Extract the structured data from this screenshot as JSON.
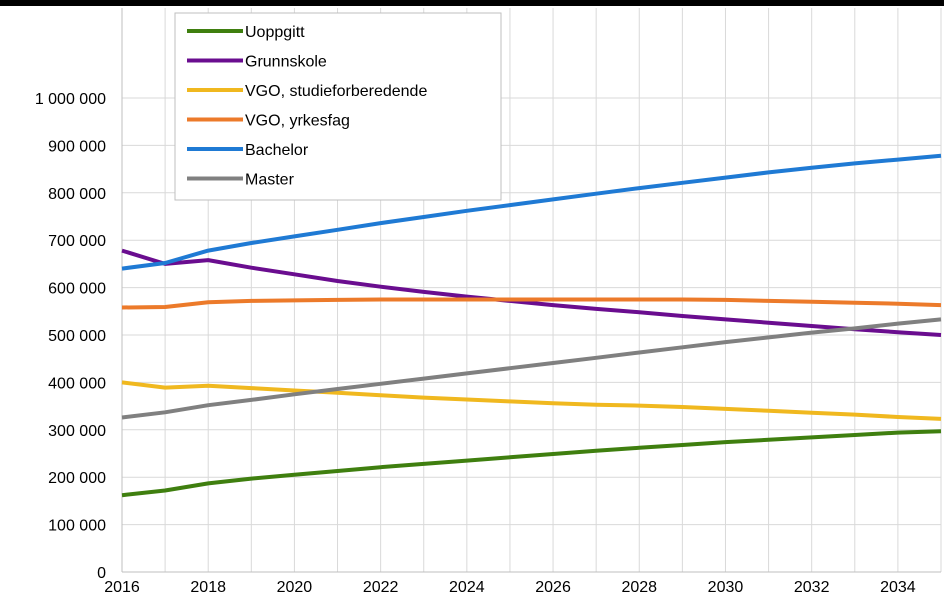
{
  "chart_data": {
    "type": "line",
    "title": "",
    "xlabel": "",
    "ylabel": "",
    "x": [
      2016,
      2017,
      2018,
      2019,
      2020,
      2021,
      2022,
      2023,
      2024,
      2025,
      2026,
      2027,
      2028,
      2029,
      2030,
      2031,
      2032,
      2033,
      2034,
      2035
    ],
    "xlim": [
      2016,
      2035
    ],
    "ylim": [
      0,
      1000000
    ],
    "x_ticks": [
      "2016",
      "2018",
      "2020",
      "2022",
      "2024",
      "2026",
      "2028",
      "2030",
      "2032",
      "2034"
    ],
    "x_tick_values": [
      2016,
      2018,
      2020,
      2022,
      2024,
      2026,
      2028,
      2030,
      2032,
      2034
    ],
    "y_ticks": [
      "0",
      "100 000",
      "200 000",
      "300 000",
      "400 000",
      "500 000",
      "600 000",
      "700 000",
      "800 000",
      "900 000",
      "1 000 000"
    ],
    "y_tick_values": [
      0,
      100000,
      200000,
      300000,
      400000,
      500000,
      600000,
      700000,
      800000,
      900000,
      1000000
    ],
    "grid": true,
    "legend_position": "top-center",
    "series": [
      {
        "name": "Uoppgitt",
        "color": "#3f7f0f",
        "values": [
          162000,
          172000,
          187000,
          197000,
          205000,
          213000,
          221000,
          228000,
          235000,
          242000,
          249000,
          256000,
          262000,
          268000,
          274000,
          279000,
          284000,
          289000,
          294000,
          297000
        ]
      },
      {
        "name": "Grunnskole",
        "color": "#6a0d8f",
        "values": [
          678000,
          650000,
          658000,
          642000,
          628000,
          614000,
          602000,
          591000,
          581000,
          572000,
          563000,
          555000,
          548000,
          540000,
          533000,
          526000,
          519000,
          512000,
          506000,
          500000
        ]
      },
      {
        "name": "VGO, studieforberedende",
        "color": "#f0b81f",
        "values": [
          400000,
          389000,
          393000,
          388000,
          383000,
          378000,
          373000,
          368000,
          364000,
          360000,
          356000,
          353000,
          351000,
          348000,
          344000,
          340000,
          336000,
          332000,
          327000,
          323000
        ]
      },
      {
        "name": "VGO, yrkesfag",
        "color": "#ec7a2a",
        "values": [
          558000,
          559000,
          569000,
          572000,
          573000,
          574000,
          575000,
          575000,
          575000,
          575000,
          575000,
          575000,
          575000,
          575000,
          574000,
          572000,
          570000,
          568000,
          566000,
          563000
        ]
      },
      {
        "name": "Bachelor",
        "color": "#1f7ad4",
        "values": [
          640000,
          652000,
          678000,
          694000,
          708000,
          722000,
          736000,
          749000,
          762000,
          774000,
          786000,
          798000,
          810000,
          821000,
          832000,
          843000,
          853000,
          862000,
          870000,
          878000
        ]
      },
      {
        "name": "Master",
        "color": "#808080",
        "values": [
          326000,
          337000,
          352000,
          363000,
          375000,
          386000,
          397000,
          408000,
          419000,
          430000,
          441000,
          452000,
          463000,
          474000,
          485000,
          495000,
          505000,
          514000,
          524000,
          533000
        ]
      }
    ]
  }
}
